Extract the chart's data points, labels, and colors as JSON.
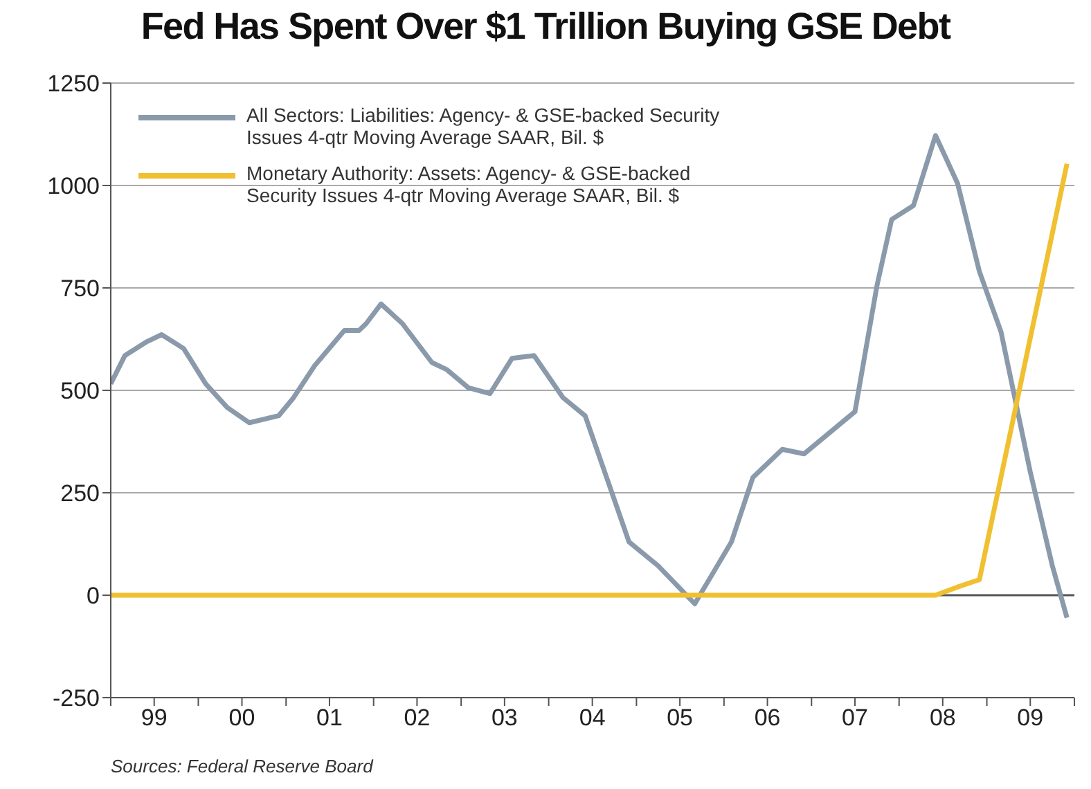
{
  "chart_data": {
    "type": "line",
    "title": "Fed Has Spent Over $1 Trillion Buying GSE Debt",
    "annotations": [
      "Sources: Federal Reserve Board"
    ],
    "xlim": [
      "1999-01",
      "2010-01"
    ],
    "xticks": [
      {
        "value": "1999-01",
        "label": null
      },
      {
        "value": "1999-07",
        "label": "99"
      },
      {
        "value": "2000-01",
        "label": null
      },
      {
        "value": "2000-07",
        "label": "00"
      },
      {
        "value": "2001-01",
        "label": null
      },
      {
        "value": "2001-07",
        "label": "01"
      },
      {
        "value": "2002-01",
        "label": null
      },
      {
        "value": "2002-07",
        "label": "02"
      },
      {
        "value": "2003-01",
        "label": null
      },
      {
        "value": "2003-07",
        "label": "03"
      },
      {
        "value": "2004-01",
        "label": null
      },
      {
        "value": "2004-07",
        "label": "04"
      },
      {
        "value": "2005-01",
        "label": null
      },
      {
        "value": "2005-07",
        "label": "05"
      },
      {
        "value": "2006-01",
        "label": null
      },
      {
        "value": "2006-07",
        "label": "06"
      },
      {
        "value": "2007-01",
        "label": null
      },
      {
        "value": "2007-07",
        "label": "07"
      },
      {
        "value": "2008-01",
        "label": null
      },
      {
        "value": "2008-07",
        "label": "08"
      },
      {
        "value": "2009-01",
        "label": null
      },
      {
        "value": "2009-07",
        "label": "09"
      },
      {
        "value": "2010-01",
        "label": null
      }
    ],
    "ylim": [
      -250,
      1250
    ],
    "yticks": [
      -250,
      0,
      250,
      500,
      750,
      1000,
      1250
    ],
    "grid": "y",
    "legend": "top left",
    "ref_lines": [
      {
        "axis": "y",
        "value": 0,
        "color": "#555555"
      }
    ],
    "series": [
      {
        "name": "All Sectors: Liabilities: Agency- & GSE-backed Security Issues 4-qtr Moving Average SAAR, Bil. $",
        "color": "#8a9aab",
        "x": [
          "1999-01",
          "1999-03",
          "1999-06",
          "1999-08",
          "1999-11",
          "2000-02",
          "2000-05",
          "2000-08",
          "2000-12",
          "2001-02",
          "2001-05",
          "2001-09",
          "2001-11",
          "2001-12",
          "2002-02",
          "2002-05",
          "2002-09",
          "2002-11",
          "2003-02",
          "2003-05",
          "2003-08",
          "2003-11",
          "2004-03",
          "2004-06",
          "2004-12",
          "2005-04",
          "2005-09",
          "2006-02",
          "2006-05",
          "2006-09",
          "2006-12",
          "2007-07",
          "2007-10",
          "2007-12",
          "2008-03",
          "2008-06",
          "2008-09",
          "2008-12",
          "2009-03",
          "2009-07",
          "2009-10",
          "2009-12"
        ],
        "values": [
          516,
          585,
          619,
          636,
          602,
          516,
          458,
          421,
          438,
          482,
          561,
          646,
          646,
          663,
          711,
          663,
          568,
          551,
          506,
          492,
          578,
          585,
          482,
          438,
          130,
          72,
          -21,
          130,
          287,
          356,
          345,
          448,
          756,
          917,
          951,
          1122,
          1005,
          790,
          643,
          301,
          72,
          -55
        ]
      },
      {
        "name": "Monetary Authority: Assets: Agency- & GSE-backed Security Issues 4-qtr Moving Average SAAR, Bil. $",
        "color": "#f0c030",
        "x": [
          "1999-01",
          "2008-06",
          "2008-09",
          "2008-12",
          "2009-12"
        ],
        "values": [
          0,
          0,
          20,
          38,
          1053
        ]
      }
    ]
  }
}
